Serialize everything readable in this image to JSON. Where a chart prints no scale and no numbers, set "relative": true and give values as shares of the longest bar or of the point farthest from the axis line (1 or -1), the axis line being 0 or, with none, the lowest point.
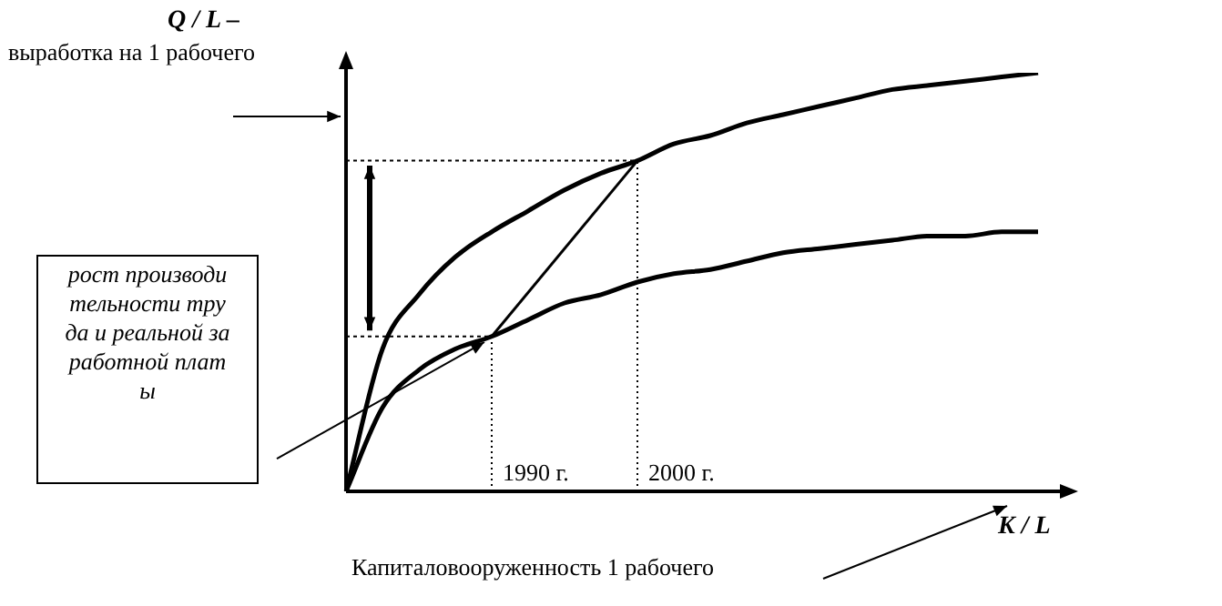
{
  "chart_data": {
    "type": "line",
    "relative": true,
    "ylabel": "Q / L –",
    "xlabel": "K / L",
    "categories": [
      null,
      null,
      null,
      null,
      null,
      null,
      null,
      null,
      null,
      null,
      null,
      null,
      null,
      null,
      null,
      null,
      null,
      null,
      null,
      null
    ],
    "series": [
      {
        "color": "#000000",
        "values": [
          0,
          0.34,
          0.47,
          0.56,
          0.62,
          0.67,
          0.72,
          0.76,
          0.79,
          0.83,
          0.85,
          0.88,
          0.9,
          0.92,
          0.94,
          0.96,
          0.97,
          0.98,
          0.99,
          1
        ]
      },
      {
        "color": "#000000",
        "values": [
          0,
          0.2,
          0.29,
          0.34,
          0.37,
          0.41,
          0.45,
          0.47,
          0.5,
          0.52,
          0.53,
          0.55,
          0.57,
          0.58,
          0.59,
          0.6,
          0.61,
          0.61,
          0.62,
          0.62
        ]
      },
      {
        "color": "#000000",
        "values": [
          null,
          null,
          null,
          null,
          0.37,
          null,
          null,
          null,
          0.79,
          null,
          null,
          null,
          null,
          null,
          null,
          null,
          null,
          null,
          null,
          null
        ]
      }
    ],
    "annotations": [
      "1990 г.",
      "2000 г.",
      "выработка на 1 рабочего",
      "Капиталовооруженность 1 рабочего",
      "рост производительности труда и реальной заработной платы"
    ],
    "ref_lines": [
      {
        "axis": "y",
        "value": 0.37,
        "line_style": "dotted"
      },
      {
        "axis": "y",
        "value": 0.79,
        "line_style": "dotted"
      }
    ],
    "marker": "none",
    "legend": false
  }
}
